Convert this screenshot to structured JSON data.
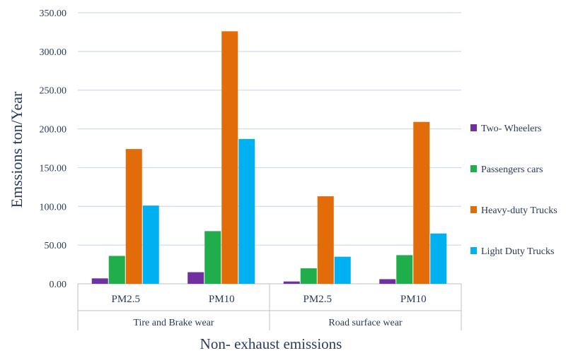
{
  "chart_data": {
    "type": "bar",
    "title": "",
    "ylabel": "Emssions ton/Year",
    "xlabel": "Non- exhaust emissions",
    "ylim": [
      0,
      350
    ],
    "yticks": [
      "0.00",
      "50.00",
      "100.00",
      "150.00",
      "200.00",
      "250.00",
      "300.00",
      "350.00"
    ],
    "groups": [
      {
        "label": "Tire and Brake wear",
        "categories": [
          "PM2.5",
          "PM10"
        ]
      },
      {
        "label": "Road surface wear",
        "categories": [
          "PM2.5",
          "PM10"
        ]
      }
    ],
    "series": [
      {
        "name": "Two- Wheelers",
        "color": "#7030a0",
        "values": [
          7,
          15,
          3,
          6
        ]
      },
      {
        "name": "Passengers cars",
        "color": "#1fae4b",
        "values": [
          36,
          68,
          20,
          37
        ]
      },
      {
        "name": "Heavy-duty Trucks",
        "color": "#e36c0a",
        "values": [
          174,
          326,
          113,
          209
        ]
      },
      {
        "name": "Light Duty Trucks",
        "color": "#00b0f0",
        "values": [
          101,
          187,
          35,
          65
        ]
      }
    ],
    "grid": true,
    "legend_position": "right"
  }
}
